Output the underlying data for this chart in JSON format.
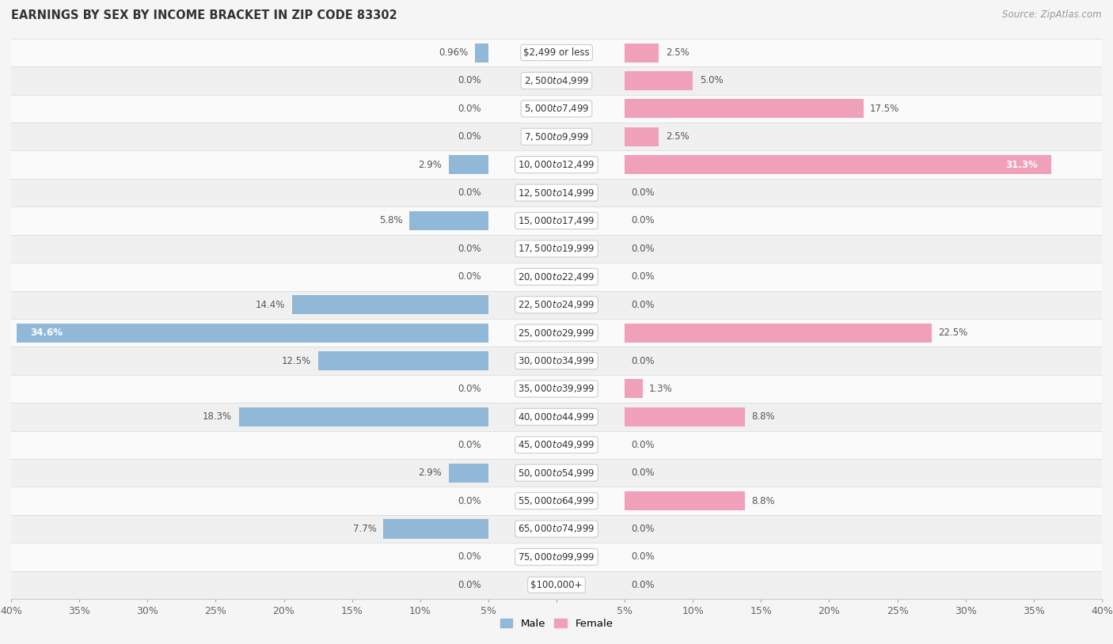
{
  "title": "EARNINGS BY SEX BY INCOME BRACKET IN ZIP CODE 83302",
  "source": "Source: ZipAtlas.com",
  "categories": [
    "$2,499 or less",
    "$2,500 to $4,999",
    "$5,000 to $7,499",
    "$7,500 to $9,999",
    "$10,000 to $12,499",
    "$12,500 to $14,999",
    "$15,000 to $17,499",
    "$17,500 to $19,999",
    "$20,000 to $22,499",
    "$22,500 to $24,999",
    "$25,000 to $29,999",
    "$30,000 to $34,999",
    "$35,000 to $39,999",
    "$40,000 to $44,999",
    "$45,000 to $49,999",
    "$50,000 to $54,999",
    "$55,000 to $64,999",
    "$65,000 to $74,999",
    "$75,000 to $99,999",
    "$100,000+"
  ],
  "male": [
    0.96,
    0.0,
    0.0,
    0.0,
    2.9,
    0.0,
    5.8,
    0.0,
    0.0,
    14.4,
    34.6,
    12.5,
    0.0,
    18.3,
    0.0,
    2.9,
    0.0,
    7.7,
    0.0,
    0.0
  ],
  "female": [
    2.5,
    5.0,
    17.5,
    2.5,
    31.3,
    0.0,
    0.0,
    0.0,
    0.0,
    0.0,
    22.5,
    0.0,
    1.3,
    8.8,
    0.0,
    0.0,
    8.8,
    0.0,
    0.0,
    0.0
  ],
  "male_color": "#92b8d8",
  "female_color": "#f0a0b8",
  "male_label": "Male",
  "female_label": "Female",
  "xlim": 40.0,
  "bg_odd": "#f0f0f0",
  "bg_even": "#fafafa",
  "row_bg_colors": [
    "#fafafa",
    "#f0f0f0",
    "#fafafa",
    "#f0f0f0",
    "#fafafa",
    "#f0f0f0",
    "#fafafa",
    "#f0f0f0",
    "#fafafa",
    "#f0f0f0",
    "#fafafa",
    "#f0f0f0",
    "#fafafa",
    "#f0f0f0",
    "#fafafa",
    "#f0f0f0",
    "#fafafa",
    "#f0f0f0",
    "#fafafa",
    "#f0f0f0"
  ],
  "title_fontsize": 10.5,
  "source_fontsize": 8.5,
  "tick_fontsize": 9,
  "cat_fontsize": 8.5,
  "val_fontsize": 8.5
}
